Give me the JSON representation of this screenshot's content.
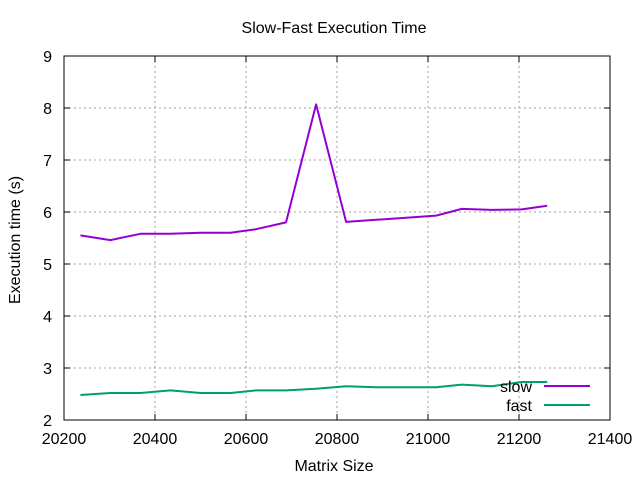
{
  "chart_data": {
    "type": "line",
    "title": "Slow-Fast Execution Time",
    "xlabel": "Matrix Size",
    "ylabel": "Execution time (s)",
    "xlim": [
      20200,
      21400
    ],
    "ylim": [
      2,
      9
    ],
    "xticks": [
      20200,
      20400,
      20600,
      20800,
      21000,
      21200,
      21400
    ],
    "yticks": [
      2,
      3,
      4,
      5,
      6,
      7,
      8,
      9
    ],
    "grid": true,
    "legend_position": "bottom-right",
    "series": [
      {
        "name": "slow",
        "color": "#9400d3",
        "x": [
          20236,
          20302,
          20368,
          20434,
          20500,
          20566,
          20622,
          20688,
          20754,
          20820,
          20886,
          20952,
          21018,
          21074,
          21140,
          21206,
          21262
        ],
        "y": [
          5.55,
          5.46,
          5.58,
          5.58,
          5.6,
          5.6,
          5.67,
          5.8,
          8.07,
          5.81,
          5.85,
          5.89,
          5.93,
          6.06,
          6.04,
          6.05,
          6.12
        ]
      },
      {
        "name": "fast",
        "color": "#009e73",
        "x": [
          20236,
          20302,
          20368,
          20434,
          20500,
          20566,
          20622,
          20688,
          20754,
          20820,
          20886,
          20952,
          21018,
          21074,
          21140,
          21206,
          21262
        ],
        "y": [
          2.48,
          2.52,
          2.52,
          2.57,
          2.52,
          2.52,
          2.57,
          2.57,
          2.6,
          2.65,
          2.63,
          2.63,
          2.63,
          2.68,
          2.65,
          2.73,
          2.73
        ]
      }
    ]
  }
}
